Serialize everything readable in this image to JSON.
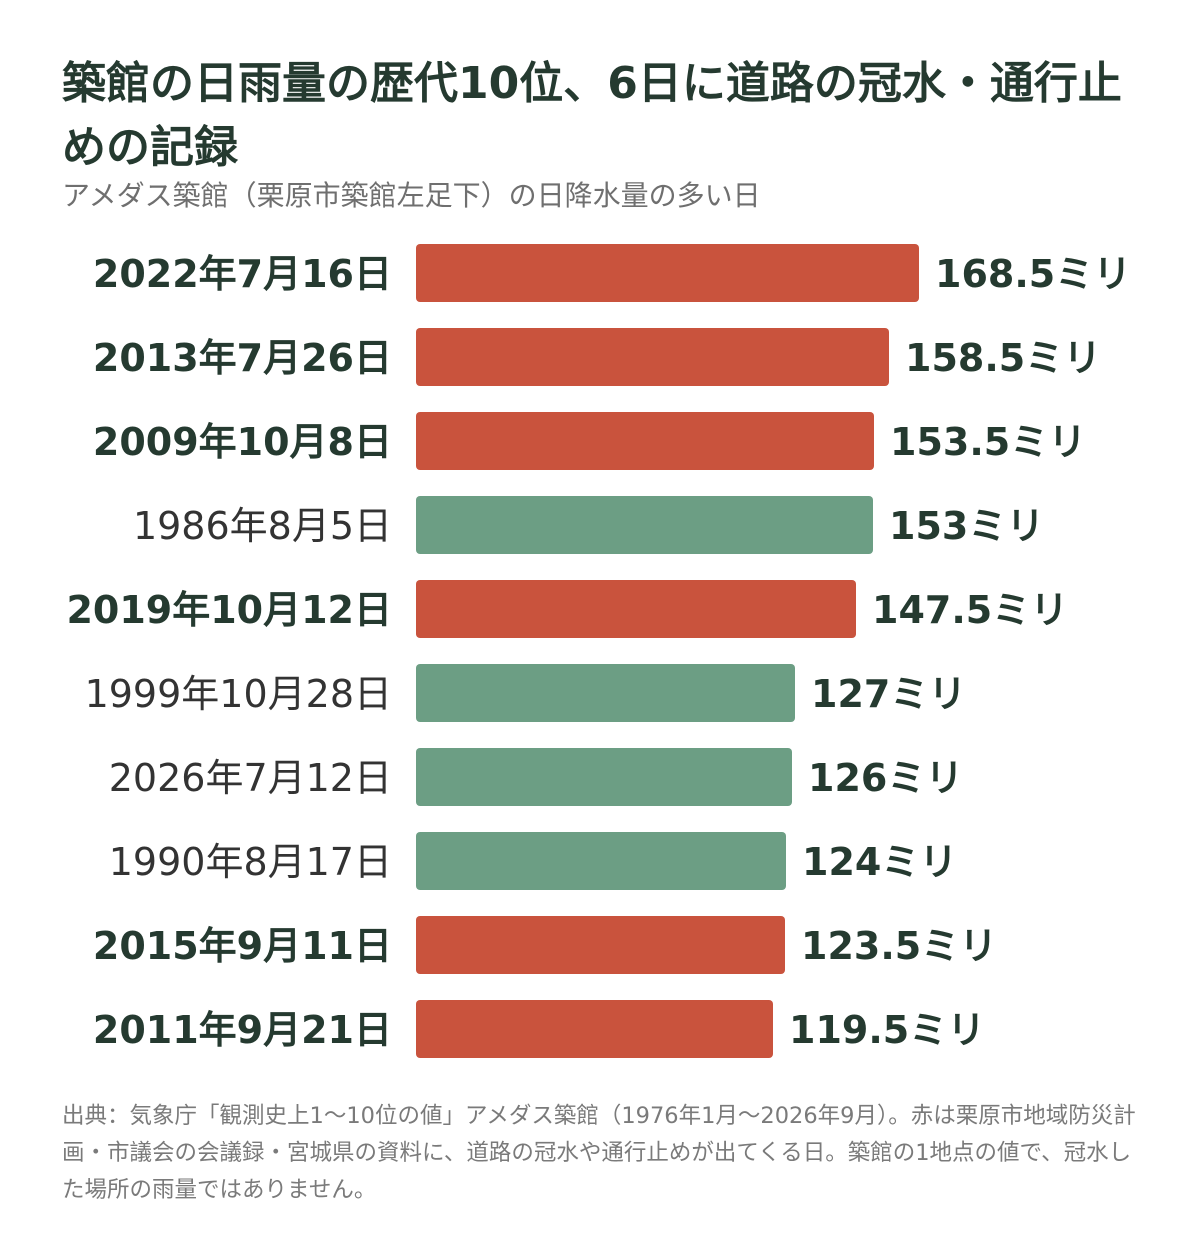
{
  "title": "築館の日雨量の歴代10位、6日に道路の冠水・通行止めの記録",
  "subtitle": "アメダス築館（栗原市築館左足下）の日降水量の多い日",
  "footnote": "出典：気象庁「観測史上1〜10位の値」アメダス築館（1976年1月〜2026年9月）。赤は栗原市地域防災計画・市議会の会議録・宮城県の資料に、道路の冠水や通行止めが出てくる日。築館の1地点の値で、冠水した場所の雨量ではありません。",
  "colors": {
    "flooded": "#c9533d",
    "other": "#6c9e84",
    "text": "#253a30"
  },
  "chart_data": {
    "type": "bar",
    "orientation": "horizontal",
    "unit": "ミリ",
    "categories": [
      "2022年7月16日",
      "2013年7月26日",
      "2009年10月8日",
      "1986年8月5日",
      "2019年10月12日",
      "1999年10月28日",
      "2026年7月12日",
      "1990年8月17日",
      "2015年9月11日",
      "2011年9月21日"
    ],
    "values": [
      168.5,
      158.5,
      153.5,
      153,
      147.5,
      127,
      126,
      124,
      123.5,
      119.5
    ],
    "value_labels": [
      "168.5ミリ",
      "158.5ミリ",
      "153.5ミリ",
      "153ミリ",
      "147.5ミリ",
      "127ミリ",
      "126ミリ",
      "124ミリ",
      "123.5ミリ",
      "119.5ミリ"
    ],
    "highlighted": [
      true,
      true,
      true,
      false,
      true,
      false,
      false,
      false,
      true,
      true
    ],
    "xlim": [
      0,
      168.5
    ],
    "grid": false,
    "legend": "none"
  }
}
